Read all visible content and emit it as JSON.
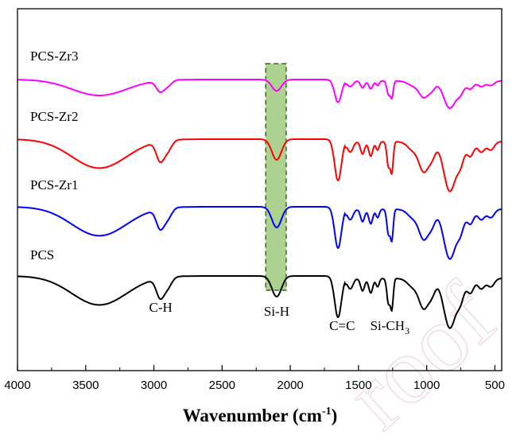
{
  "chart_data": {
    "type": "line",
    "xlabel": "Wavenumber (cm",
    "xlabel_sup": "-1",
    "xlabel_close": ")",
    "ylabel": "",
    "xlim": [
      4000,
      450
    ],
    "x_reversed": true,
    "grid": false,
    "x_ticks": [
      "4000",
      "3500",
      "3000",
      "2500",
      "2000",
      "1500",
      "1000",
      "500"
    ],
    "x_tick_values": [
      4000,
      3500,
      3000,
      2500,
      2000,
      1500,
      1000,
      500
    ],
    "series": [
      {
        "name": "PCS-Zr3",
        "color": "#ff00ff",
        "offset": 3
      },
      {
        "name": "PCS-Zr2",
        "color": "#ff0000",
        "offset": 2
      },
      {
        "name": "PCS-Zr1",
        "color": "#0000ff",
        "offset": 1
      },
      {
        "name": "PCS",
        "color": "#000000",
        "offset": 0
      }
    ],
    "annotations": [
      {
        "id": "ch",
        "text": "C-H",
        "x": 2950
      },
      {
        "id": "sih",
        "text": "Si-H",
        "x": 2100
      },
      {
        "id": "cc",
        "text": "C=C",
        "x": 1620
      },
      {
        "id": "sich3",
        "text": "Si-CH",
        "sub": "3",
        "x": 1270
      }
    ],
    "highlight": {
      "label": "Si-H band",
      "x_range": [
        2180,
        2030
      ],
      "color": "#92c36b"
    }
  },
  "watermark": "roof"
}
